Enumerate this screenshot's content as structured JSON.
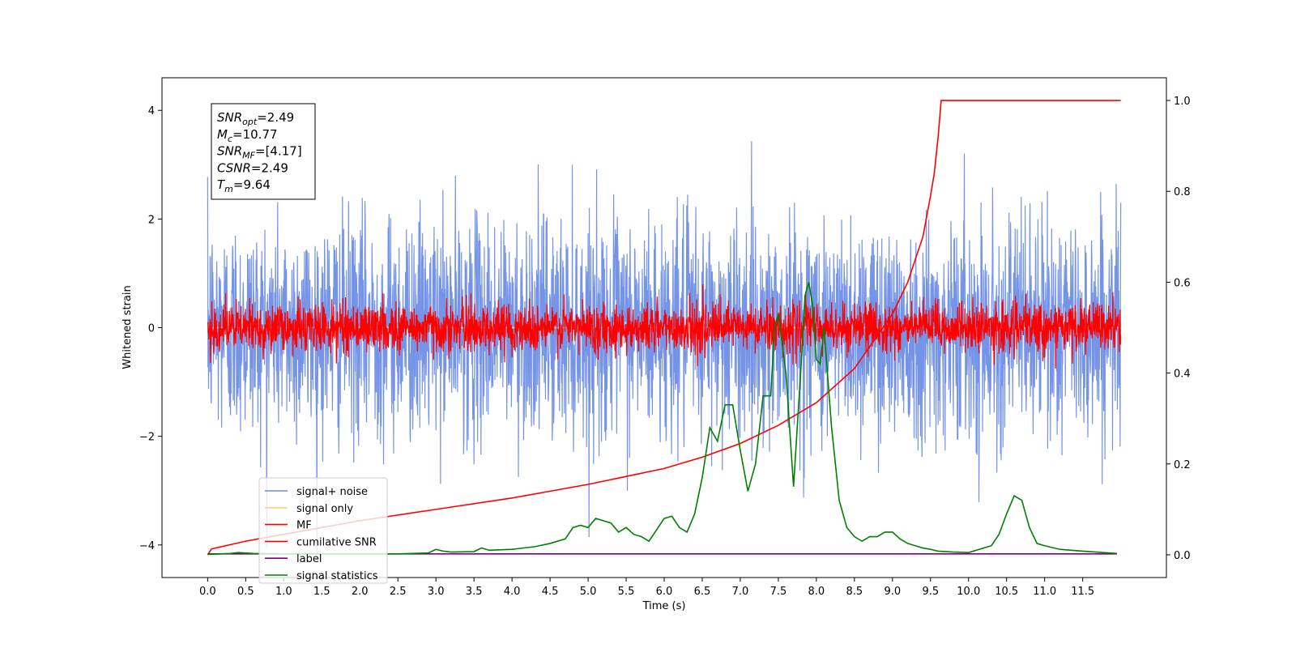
{
  "chart_data": {
    "type": "line",
    "xlabel": "Time (s)",
    "ylabel": "Whitened strain",
    "xlim": [
      -0.6,
      12.6
    ],
    "ylim": [
      -4.6,
      4.6
    ],
    "y2lim": [
      -0.05,
      1.05
    ],
    "grid": false,
    "legend_position": "lower-left",
    "x_ticks": [
      "0.0",
      "0.5",
      "1.0",
      "1.5",
      "2.0",
      "2.5",
      "3.0",
      "3.5",
      "4.0",
      "4.5",
      "5.0",
      "5.5",
      "6.0",
      "6.5",
      "7.0",
      "7.5",
      "8.0",
      "8.5",
      "9.0",
      "9.5",
      "10.0",
      "10.5",
      "11.0",
      "11.5"
    ],
    "y_ticks": [
      "4",
      "2",
      "0",
      "−2",
      "−4"
    ],
    "y2_ticks": [
      "1.0",
      "0.8",
      "0.6",
      "0.4",
      "0.2",
      "0.0"
    ],
    "series": [
      {
        "name": "signal+ noise",
        "color": "#6f8ee6",
        "axis": "left",
        "kind": "noise",
        "x_range": [
          0.0,
          12.0
        ],
        "mean": 0.0,
        "std": 1.0
      },
      {
        "name": "signal only",
        "color": "#ffd27f",
        "axis": "left",
        "kind": "flat",
        "x": [
          0.0,
          12.0
        ],
        "y": [
          0.0,
          0.0
        ]
      },
      {
        "name": "MF",
        "color": "#ff0000",
        "axis": "left",
        "kind": "noise",
        "x_range": [
          0.0,
          12.0
        ],
        "mean": 0.0,
        "std": 0.22
      },
      {
        "name": "cumilative SNR",
        "color": "#ff0000",
        "axis": "right",
        "x": [
          0.0,
          0.05,
          0.5,
          1.0,
          2.0,
          3.0,
          4.0,
          5.0,
          6.0,
          6.5,
          7.0,
          7.5,
          8.0,
          8.5,
          9.0,
          9.2,
          9.4,
          9.5,
          9.55,
          9.6,
          9.64,
          12.0
        ],
        "y": [
          0.0,
          0.013,
          0.03,
          0.045,
          0.075,
          0.1,
          0.125,
          0.155,
          0.19,
          0.215,
          0.245,
          0.285,
          0.335,
          0.41,
          0.53,
          0.6,
          0.7,
          0.79,
          0.84,
          0.92,
          1.0,
          1.0
        ]
      },
      {
        "name": "label",
        "color": "#800080",
        "axis": "right",
        "x": [
          0.0,
          11.95
        ],
        "y": [
          0.002,
          0.002
        ]
      },
      {
        "name": "signal statistics",
        "color": "#008000",
        "axis": "right",
        "x": [
          0.0,
          0.3,
          0.4,
          0.6,
          1.0,
          2.0,
          2.5,
          2.9,
          3.0,
          3.1,
          3.2,
          3.5,
          3.6,
          3.7,
          4.0,
          4.3,
          4.5,
          4.7,
          4.8,
          4.9,
          5.0,
          5.1,
          5.2,
          5.3,
          5.4,
          5.5,
          5.6,
          5.7,
          5.8,
          5.9,
          6.0,
          6.1,
          6.2,
          6.3,
          6.4,
          6.5,
          6.6,
          6.7,
          6.8,
          6.9,
          7.0,
          7.1,
          7.2,
          7.3,
          7.4,
          7.45,
          7.5,
          7.6,
          7.7,
          7.8,
          7.85,
          7.9,
          7.95,
          8.0,
          8.05,
          8.1,
          8.2,
          8.3,
          8.4,
          8.5,
          8.6,
          8.7,
          8.8,
          8.9,
          9.0,
          9.1,
          9.2,
          9.3,
          9.4,
          9.5,
          9.6,
          9.8,
          10.0,
          10.2,
          10.3,
          10.4,
          10.5,
          10.6,
          10.7,
          10.8,
          10.9,
          11.0,
          11.2,
          11.5,
          11.95
        ],
        "y": [
          0.001,
          0.003,
          0.005,
          0.003,
          0.002,
          0.002,
          0.002,
          0.004,
          0.012,
          0.008,
          0.006,
          0.007,
          0.015,
          0.01,
          0.012,
          0.018,
          0.025,
          0.035,
          0.06,
          0.065,
          0.06,
          0.08,
          0.075,
          0.07,
          0.05,
          0.06,
          0.045,
          0.04,
          0.03,
          0.055,
          0.08,
          0.085,
          0.06,
          0.05,
          0.09,
          0.17,
          0.28,
          0.25,
          0.33,
          0.33,
          0.23,
          0.14,
          0.2,
          0.35,
          0.35,
          0.5,
          0.53,
          0.4,
          0.15,
          0.42,
          0.57,
          0.6,
          0.55,
          0.43,
          0.42,
          0.5,
          0.28,
          0.12,
          0.06,
          0.04,
          0.03,
          0.04,
          0.04,
          0.05,
          0.05,
          0.035,
          0.025,
          0.02,
          0.015,
          0.012,
          0.008,
          0.006,
          0.005,
          0.015,
          0.02,
          0.045,
          0.09,
          0.13,
          0.12,
          0.06,
          0.025,
          0.02,
          0.012,
          0.008,
          0.003
        ]
      }
    ],
    "annotation": {
      "lines": [
        {
          "base": "SNR",
          "sub": "opt",
          "value": "=2.49"
        },
        {
          "base": "M",
          "sub": "c",
          "value": "=10.77"
        },
        {
          "base": "SNR",
          "sub": "MF",
          "value": "=[4.17]"
        },
        {
          "base": "CSNR",
          "sub": "",
          "value": "=2.49"
        },
        {
          "base": "T",
          "sub": "m",
          "value": "=9.64"
        }
      ]
    }
  }
}
